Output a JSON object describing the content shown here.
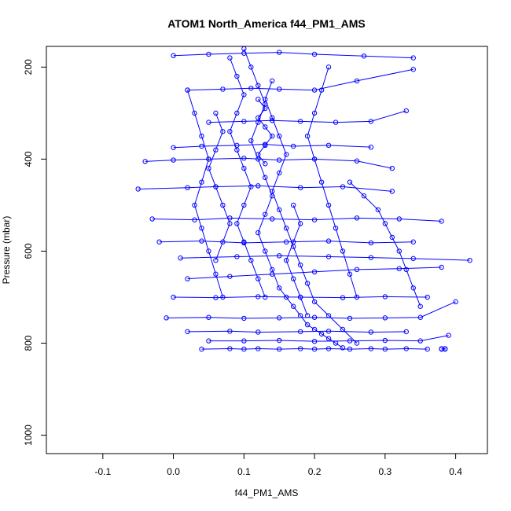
{
  "chart_data": {
    "type": "scatter",
    "title": "ATOM1 North_America f44_PM1_AMS",
    "xlabel": "f44_PM1_AMS",
    "ylabel": "Pressure (mbar)",
    "xlim": [
      -0.18,
      0.445
    ],
    "ylim": [
      1040,
      155
    ],
    "y_axis_inverted": true,
    "x_ticks": [
      -0.1,
      0.0,
      0.1,
      0.2,
      0.3,
      0.4
    ],
    "x_tick_labels": [
      "-0.1",
      "0.0",
      "0.1",
      "0.2",
      "0.3",
      "0.4"
    ],
    "y_ticks": [
      200,
      400,
      600,
      800,
      1000
    ],
    "y_tick_labels": [
      "200",
      "400",
      "600",
      "800",
      "1000"
    ],
    "grid": false,
    "legend": "none",
    "marker": "open-circle",
    "connected": true,
    "series_color": "#0000ff",
    "series": [
      {
        "x": [
          0.38,
          0.385,
          0.385,
          0.38
        ],
        "y": [
          813,
          813,
          812,
          812
        ]
      },
      {
        "x": [
          0.04,
          0.08,
          0.1,
          0.12,
          0.15,
          0.18,
          0.2,
          0.22,
          0.25,
          0.28,
          0.3,
          0.33,
          0.36
        ],
        "y": [
          813,
          812,
          813,
          812,
          813,
          812,
          813,
          812,
          813,
          812,
          813,
          812,
          813
        ]
      },
      {
        "x": [
          0.05,
          0.1,
          0.15,
          0.2,
          0.25,
          0.3,
          0.35,
          0.39
        ],
        "y": [
          795,
          795,
          794,
          796,
          795,
          794,
          795,
          783
        ]
      },
      {
        "x": [
          0.02,
          0.08,
          0.12,
          0.18,
          0.22,
          0.28,
          0.33
        ],
        "y": [
          775,
          774,
          776,
          775,
          774,
          776,
          775
        ]
      },
      {
        "x": [
          -0.01,
          0.05,
          0.1,
          0.15,
          0.2,
          0.25,
          0.3,
          0.35,
          0.4
        ],
        "y": [
          745,
          744,
          746,
          745,
          744,
          746,
          745,
          744,
          710
        ]
      },
      {
        "x": [
          0.0,
          0.06,
          0.12,
          0.18,
          0.24,
          0.3,
          0.36
        ],
        "y": [
          700,
          701,
          699,
          700,
          701,
          699,
          700
        ]
      },
      {
        "x": [
          0.02,
          0.08,
          0.14,
          0.2,
          0.26,
          0.32,
          0.38
        ],
        "y": [
          660,
          655,
          650,
          645,
          640,
          638,
          635
        ]
      },
      {
        "x": [
          0.01,
          0.09,
          0.15,
          0.22,
          0.28,
          0.34,
          0.42
        ],
        "y": [
          615,
          612,
          610,
          612,
          614,
          616,
          620
        ]
      },
      {
        "x": [
          -0.02,
          0.04,
          0.1,
          0.16,
          0.22,
          0.28,
          0.34
        ],
        "y": [
          580,
          578,
          582,
          580,
          578,
          582,
          580
        ]
      },
      {
        "x": [
          -0.03,
          0.03,
          0.08,
          0.14,
          0.2,
          0.26,
          0.32,
          0.38
        ],
        "y": [
          530,
          532,
          528,
          530,
          532,
          528,
          530,
          535
        ]
      },
      {
        "x": [
          -0.05,
          0.02,
          0.06,
          0.12,
          0.18,
          0.24,
          0.31
        ],
        "y": [
          465,
          462,
          460,
          458,
          462,
          460,
          470
        ]
      },
      {
        "x": [
          -0.04,
          0.0,
          0.05,
          0.1,
          0.15,
          0.2,
          0.26,
          0.31
        ],
        "y": [
          405,
          402,
          400,
          398,
          402,
          400,
          404,
          420
        ]
      },
      {
        "x": [
          0.0,
          0.04,
          0.09,
          0.13,
          0.17,
          0.22,
          0.28
        ],
        "y": [
          375,
          372,
          370,
          368,
          372,
          370,
          374
        ]
      },
      {
        "x": [
          0.05,
          0.1,
          0.14,
          0.18,
          0.23,
          0.28,
          0.33
        ],
        "y": [
          320,
          318,
          316,
          318,
          320,
          318,
          295
        ]
      },
      {
        "x": [
          0.02,
          0.07,
          0.11,
          0.15,
          0.2,
          0.26,
          0.34
        ],
        "y": [
          250,
          248,
          246,
          248,
          250,
          230,
          205
        ]
      },
      {
        "x": [
          0.0,
          0.05,
          0.1,
          0.15,
          0.2,
          0.27,
          0.34
        ],
        "y": [
          175,
          172,
          170,
          168,
          172,
          176,
          180
        ]
      },
      {
        "x": [
          0.1,
          0.11,
          0.12,
          0.13,
          0.12,
          0.11,
          0.12,
          0.13,
          0.14,
          0.13,
          0.12,
          0.13,
          0.14,
          0.15,
          0.16,
          0.17,
          0.18,
          0.19,
          0.2,
          0.21,
          0.22,
          0.23,
          0.24
        ],
        "y": [
          160,
          200,
          240,
          280,
          320,
          360,
          400,
          440,
          480,
          520,
          560,
          600,
          640,
          680,
          700,
          720,
          740,
          760,
          770,
          780,
          790,
          800,
          810
        ]
      },
      {
        "x": [
          0.14,
          0.13,
          0.14,
          0.15,
          0.16,
          0.15,
          0.14,
          0.15,
          0.16,
          0.17,
          0.18,
          0.19,
          0.2,
          0.22,
          0.24,
          0.26
        ],
        "y": [
          230,
          270,
          310,
          350,
          390,
          430,
          470,
          510,
          550,
          590,
          630,
          670,
          710,
          740,
          770,
          800
        ]
      },
      {
        "x": [
          0.08,
          0.09,
          0.1,
          0.09,
          0.08,
          0.09,
          0.1,
          0.11,
          0.1,
          0.09,
          0.1,
          0.11,
          0.12,
          0.13
        ],
        "y": [
          180,
          220,
          260,
          300,
          340,
          380,
          420,
          460,
          500,
          540,
          580,
          620,
          660,
          700
        ]
      },
      {
        "x": [
          0.22,
          0.21,
          0.2,
          0.19,
          0.2,
          0.21,
          0.22,
          0.23,
          0.24,
          0.25,
          0.26
        ],
        "y": [
          200,
          250,
          300,
          350,
          400,
          450,
          500,
          550,
          600,
          650,
          700
        ]
      },
      {
        "x": [
          0.06,
          0.07,
          0.06,
          0.05,
          0.06,
          0.07,
          0.08,
          0.07,
          0.06
        ],
        "y": [
          300,
          340,
          380,
          420,
          460,
          500,
          540,
          580,
          620
        ]
      },
      {
        "x": [
          0.02,
          0.03,
          0.04,
          0.05,
          0.04,
          0.03,
          0.04,
          0.05,
          0.06,
          0.07
        ],
        "y": [
          250,
          300,
          350,
          400,
          450,
          500,
          550,
          600,
          650,
          700
        ]
      },
      {
        "x": [
          0.25,
          0.27,
          0.29,
          0.3,
          0.31,
          0.32,
          0.33,
          0.34,
          0.35
        ],
        "y": [
          450,
          480,
          510,
          540,
          570,
          600,
          640,
          680,
          720
        ]
      },
      {
        "x": [
          0.17,
          0.18,
          0.17,
          0.16,
          0.17,
          0.18,
          0.19
        ],
        "y": [
          500,
          540,
          580,
          620,
          660,
          700,
          740
        ]
      },
      {
        "x": [
          0.12,
          0.13,
          0.12,
          0.13,
          0.14,
          0.13,
          0.12,
          0.13
        ],
        "y": [
          270,
          290,
          310,
          330,
          350,
          370,
          390,
          410
        ]
      }
    ]
  }
}
